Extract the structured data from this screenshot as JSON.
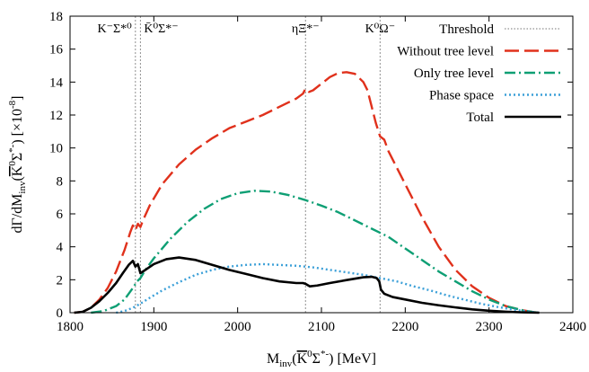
{
  "chart_data": {
    "type": "line",
    "xlabel": "M_inv(K̄⁰Σ*⁻) [MeV]",
    "ylabel": "dΓ/dM_inv(K̄⁰Σ*⁻) [×10⁻⁸]",
    "xlim": [
      1800,
      2400
    ],
    "ylim": [
      0,
      18
    ],
    "x_ticks": [
      "1800",
      "1900",
      "2000",
      "2100",
      "2200",
      "2300",
      "2400"
    ],
    "y_ticks": [
      "0",
      "2",
      "4",
      "6",
      "8",
      "10",
      "12",
      "14",
      "16",
      "18"
    ],
    "grid": false,
    "legend_position": "top-right",
    "thresholds": [
      {
        "label": "K⁻Σ*⁰",
        "x": 1878
      },
      {
        "label": "K̄⁰Σ*⁻",
        "x": 1884
      },
      {
        "label": "ηΞ*⁻",
        "x": 2081
      },
      {
        "label": "K⁰Ω⁻",
        "x": 2170
      }
    ],
    "series": [
      {
        "name": "Threshold",
        "color": "#909090",
        "style": "dotted",
        "points": []
      },
      {
        "name": "Without tree level",
        "color": "#e0311c",
        "style": "long-dash",
        "points": [
          [
            1805,
            0
          ],
          [
            1815,
            0.05
          ],
          [
            1825,
            0.3
          ],
          [
            1835,
            0.8
          ],
          [
            1845,
            1.5
          ],
          [
            1855,
            2.5
          ],
          [
            1865,
            3.8
          ],
          [
            1872,
            4.9
          ],
          [
            1875,
            5.3
          ],
          [
            1878,
            5.0
          ],
          [
            1881,
            5.4
          ],
          [
            1884,
            5.2
          ],
          [
            1887,
            5.6
          ],
          [
            1895,
            6.5
          ],
          [
            1910,
            7.8
          ],
          [
            1930,
            9.0
          ],
          [
            1950,
            9.9
          ],
          [
            1970,
            10.6
          ],
          [
            1990,
            11.2
          ],
          [
            2010,
            11.6
          ],
          [
            2030,
            12.0
          ],
          [
            2050,
            12.5
          ],
          [
            2070,
            13.0
          ],
          [
            2078,
            13.3
          ],
          [
            2081,
            13.6
          ],
          [
            2085,
            13.4
          ],
          [
            2090,
            13.5
          ],
          [
            2100,
            13.9
          ],
          [
            2110,
            14.3
          ],
          [
            2120,
            14.55
          ],
          [
            2130,
            14.6
          ],
          [
            2140,
            14.5
          ],
          [
            2150,
            14.0
          ],
          [
            2155,
            13.5
          ],
          [
            2160,
            12.5
          ],
          [
            2165,
            11.5
          ],
          [
            2170,
            10.7
          ],
          [
            2175,
            10.5
          ],
          [
            2180,
            9.8
          ],
          [
            2190,
            8.8
          ],
          [
            2200,
            7.8
          ],
          [
            2220,
            5.8
          ],
          [
            2240,
            4.0
          ],
          [
            2260,
            2.6
          ],
          [
            2280,
            1.6
          ],
          [
            2300,
            0.9
          ],
          [
            2320,
            0.4
          ],
          [
            2340,
            0.15
          ],
          [
            2355,
            0.02
          ],
          [
            2360,
            0
          ]
        ]
      },
      {
        "name": "Only tree level",
        "color": "#0e9f74",
        "style": "dash-dot",
        "points": [
          [
            1825,
            0
          ],
          [
            1840,
            0.1
          ],
          [
            1855,
            0.4
          ],
          [
            1865,
            0.8
          ],
          [
            1875,
            1.5
          ],
          [
            1880,
            1.9
          ],
          [
            1884,
            2.1
          ],
          [
            1890,
            2.6
          ],
          [
            1900,
            3.3
          ],
          [
            1920,
            4.5
          ],
          [
            1940,
            5.5
          ],
          [
            1960,
            6.3
          ],
          [
            1980,
            6.9
          ],
          [
            2000,
            7.25
          ],
          [
            2020,
            7.4
          ],
          [
            2040,
            7.35
          ],
          [
            2060,
            7.15
          ],
          [
            2080,
            6.85
          ],
          [
            2100,
            6.5
          ],
          [
            2120,
            6.1
          ],
          [
            2140,
            5.6
          ],
          [
            2160,
            5.1
          ],
          [
            2170,
            4.85
          ],
          [
            2180,
            4.6
          ],
          [
            2200,
            3.9
          ],
          [
            2220,
            3.2
          ],
          [
            2240,
            2.5
          ],
          [
            2260,
            1.9
          ],
          [
            2280,
            1.3
          ],
          [
            2300,
            0.8
          ],
          [
            2320,
            0.4
          ],
          [
            2340,
            0.15
          ],
          [
            2355,
            0.02
          ],
          [
            2360,
            0
          ]
        ]
      },
      {
        "name": "Phase space",
        "color": "#3ca0d8",
        "style": "dotted",
        "points": [
          [
            1855,
            0
          ],
          [
            1865,
            0.1
          ],
          [
            1875,
            0.3
          ],
          [
            1884,
            0.55
          ],
          [
            1895,
            0.9
          ],
          [
            1910,
            1.35
          ],
          [
            1930,
            1.85
          ],
          [
            1950,
            2.3
          ],
          [
            1970,
            2.6
          ],
          [
            1990,
            2.8
          ],
          [
            2010,
            2.9
          ],
          [
            2030,
            2.95
          ],
          [
            2050,
            2.9
          ],
          [
            2070,
            2.85
          ],
          [
            2090,
            2.75
          ],
          [
            2110,
            2.6
          ],
          [
            2130,
            2.45
          ],
          [
            2150,
            2.3
          ],
          [
            2170,
            2.1
          ],
          [
            2190,
            1.9
          ],
          [
            2210,
            1.6
          ],
          [
            2230,
            1.35
          ],
          [
            2250,
            1.05
          ],
          [
            2270,
            0.8
          ],
          [
            2290,
            0.55
          ],
          [
            2310,
            0.35
          ],
          [
            2330,
            0.18
          ],
          [
            2350,
            0.05
          ],
          [
            2360,
            0
          ]
        ]
      },
      {
        "name": "Total",
        "color": "#000000",
        "style": "solid",
        "points": [
          [
            1805,
            0
          ],
          [
            1815,
            0.05
          ],
          [
            1825,
            0.3
          ],
          [
            1835,
            0.7
          ],
          [
            1845,
            1.2
          ],
          [
            1855,
            1.8
          ],
          [
            1863,
            2.4
          ],
          [
            1870,
            2.9
          ],
          [
            1875,
            3.15
          ],
          [
            1878,
            2.8
          ],
          [
            1881,
            2.95
          ],
          [
            1884,
            2.4
          ],
          [
            1890,
            2.6
          ],
          [
            1900,
            2.95
          ],
          [
            1915,
            3.25
          ],
          [
            1930,
            3.35
          ],
          [
            1950,
            3.2
          ],
          [
            1970,
            2.9
          ],
          [
            1990,
            2.6
          ],
          [
            2010,
            2.35
          ],
          [
            2030,
            2.1
          ],
          [
            2050,
            1.9
          ],
          [
            2070,
            1.8
          ],
          [
            2078,
            1.8
          ],
          [
            2081,
            1.75
          ],
          [
            2086,
            1.6
          ],
          [
            2095,
            1.65
          ],
          [
            2110,
            1.8
          ],
          [
            2130,
            1.98
          ],
          [
            2150,
            2.15
          ],
          [
            2160,
            2.18
          ],
          [
            2166,
            2.1
          ],
          [
            2169,
            1.9
          ],
          [
            2171,
            1.4
          ],
          [
            2175,
            1.15
          ],
          [
            2185,
            0.95
          ],
          [
            2200,
            0.8
          ],
          [
            2220,
            0.6
          ],
          [
            2240,
            0.45
          ],
          [
            2260,
            0.32
          ],
          [
            2280,
            0.2
          ],
          [
            2300,
            0.12
          ],
          [
            2320,
            0.06
          ],
          [
            2340,
            0.02
          ],
          [
            2360,
            0
          ]
        ]
      }
    ]
  }
}
